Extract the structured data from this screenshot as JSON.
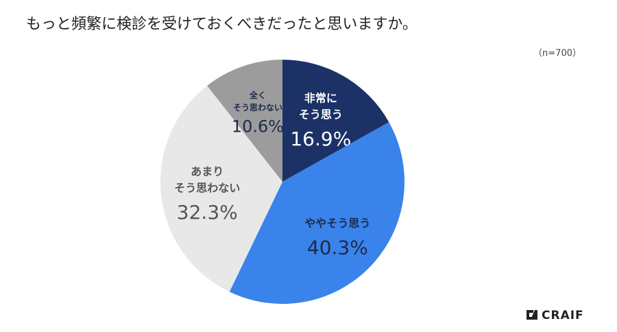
{
  "chart_data": {
    "type": "pie",
    "title": "もっと頻繁に検診を受けておくべきだったと思いますか。",
    "subtitle": "（n=700）",
    "categories": [
      [
        "非常に",
        "そう思う"
      ],
      [
        "ややそう思う"
      ],
      [
        "あまり",
        "そう思わない"
      ],
      [
        "全く",
        "そう思わない"
      ]
    ],
    "values": [
      16.9,
      40.3,
      32.3,
      10.6
    ],
    "value_labels": [
      "16.9%",
      "40.3%",
      "32.3%",
      "10.6%"
    ],
    "colors": [
      "#1c3166",
      "#3a83ea",
      "#e8e8e8",
      "#9c9c9c"
    ]
  },
  "logo": "CRAIF"
}
